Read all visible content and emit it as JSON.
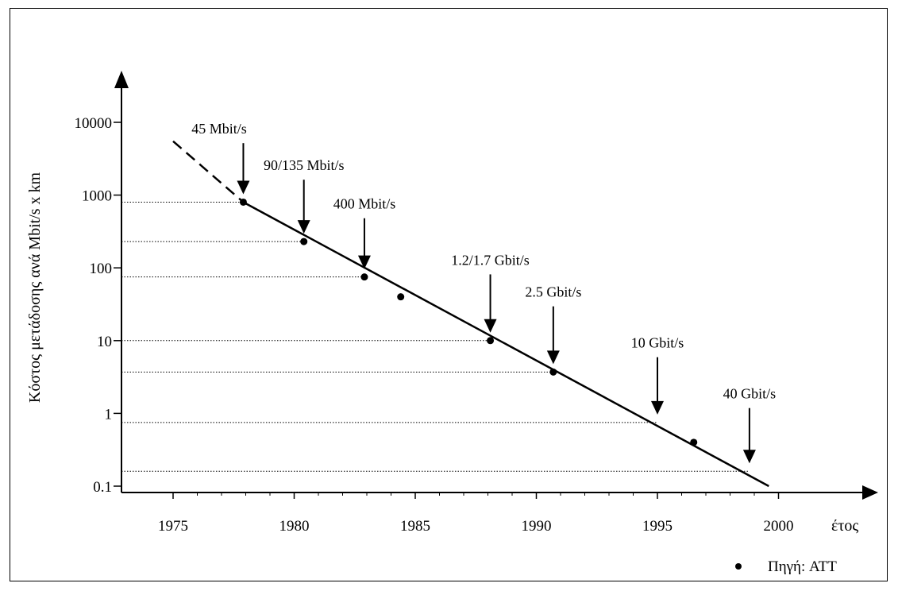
{
  "chart_data": {
    "type": "line",
    "xlabel": "έτος",
    "ylabel": "Κόστος μετάδοσης ανά Mbit/s x km",
    "y_scale": "log",
    "xlim": [
      1973,
      2000
    ],
    "ylim": [
      0.1,
      10000
    ],
    "x_ticks": [
      1975,
      1980,
      1985,
      1990,
      1995,
      2000
    ],
    "x_tick_labels": [
      "1975",
      "1980",
      "1985",
      "1990",
      "1995",
      "2000"
    ],
    "y_ticks": [
      0.1,
      1,
      10,
      100,
      1000,
      10000
    ],
    "y_tick_labels": [
      "0.1",
      "1",
      "10",
      "100",
      "1000",
      "10000"
    ],
    "grid": "dotted horizontal reference lines",
    "legend": "bottom-right",
    "series": [
      {
        "name": "Πηγή: ATT",
        "x": [
          1977.9,
          1980.4,
          1982.9,
          1984.4,
          1988.1,
          1990.7,
          1996.5
        ],
        "y": [
          800,
          230,
          75,
          40,
          10,
          3.7,
          0.4
        ]
      }
    ],
    "trend_line": {
      "dashed": {
        "x": [
          1975,
          1977.9
        ],
        "y": [
          5500,
          800
        ]
      },
      "solid": {
        "x": [
          1977.9,
          1999.6
        ],
        "y": [
          800,
          0.1
        ]
      }
    },
    "reference_lines": [
      {
        "x_to": 1977.9,
        "y": 800
      },
      {
        "x_to": 1980.4,
        "y": 230
      },
      {
        "x_to": 1982.9,
        "y": 75
      },
      {
        "x_to": 1988.1,
        "y": 10
      },
      {
        "x_to": 1990.7,
        "y": 3.7
      },
      {
        "x_to": 1995.0,
        "y": 0.75
      },
      {
        "x_to": 1998.8,
        "y": 0.16
      }
    ],
    "annotations": [
      {
        "text": "45 Mbit/s",
        "x": 1977.9,
        "y": 800,
        "label_x": 1976.9,
        "label_y": 7000
      },
      {
        "text": "90/135 Mbit/s",
        "x": 1980.4,
        "y": 230,
        "label_x": 1980.4,
        "label_y": 2200
      },
      {
        "text": "400 Mbit/s",
        "x": 1982.9,
        "y": 75,
        "label_x": 1982.9,
        "label_y": 650
      },
      {
        "text": "1.2/1.7 Gbit/s",
        "x": 1988.1,
        "y": 10,
        "label_x": 1988.1,
        "label_y": 110
      },
      {
        "text": "2.5 Gbit/s",
        "x": 1990.7,
        "y": 3.7,
        "label_x": 1990.7,
        "label_y": 40
      },
      {
        "text": "10 Gbit/s",
        "x": 1995.0,
        "y": 0.75,
        "label_x": 1995.0,
        "label_y": 8
      },
      {
        "text": "40 Gbit/s",
        "x": 1998.8,
        "y": 0.16,
        "label_x": 1998.8,
        "label_y": 1.6
      }
    ],
    "legend_label": "Πηγή: ATT"
  }
}
